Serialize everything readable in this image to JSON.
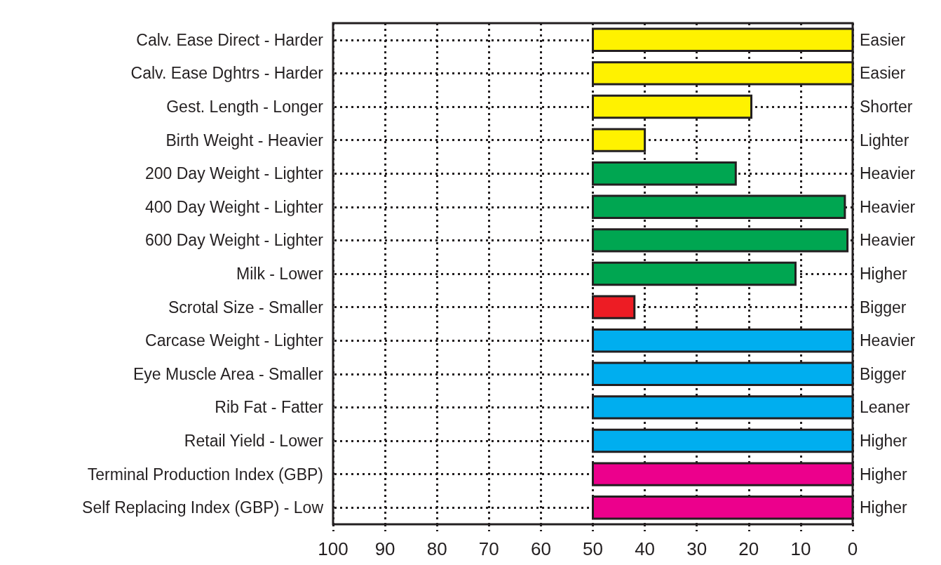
{
  "chart_data": {
    "type": "bar",
    "orientation": "horizontal",
    "categories": [
      "Calv. Ease Direct - Harder",
      "Calv. Ease Dghtrs - Harder",
      "Gest. Length - Longer",
      "Birth Weight - Heavier",
      "200 Day Weight - Lighter",
      "400 Day Weight - Lighter",
      "600 Day Weight - Lighter",
      "Milk - Lower",
      "Scrotal Size - Smaller",
      "Carcase Weight - Lighter",
      "Eye Muscle Area - Smaller",
      "Rib Fat - Fatter",
      "Retail Yield - Lower",
      "Terminal Production Index (GBP)",
      "Self Replacing Index (GBP) - Low"
    ],
    "y2_categories": [
      "Easier",
      "Easier",
      "Shorter",
      "Lighter",
      "Heavier",
      "Heavier",
      "Heavier",
      "Higher",
      "Bigger",
      "Heavier",
      "Bigger",
      "Leaner",
      "Higher",
      "Higher",
      "Higher"
    ],
    "base": [
      0,
      0,
      19.5,
      40,
      22.5,
      1.5,
      1,
      11,
      42,
      0,
      0,
      0,
      0,
      0,
      0
    ],
    "values": [
      50,
      50,
      30.5,
      10,
      27.5,
      48.5,
      49,
      39,
      8,
      50,
      50,
      50,
      50,
      50,
      50
    ],
    "colors": [
      "#fff200",
      "#fff200",
      "#fff200",
      "#fff200",
      "#00a651",
      "#00a651",
      "#00a651",
      "#00a651",
      "#ed1c24",
      "#00aeef",
      "#00aeef",
      "#00aeef",
      "#00aeef",
      "#ec008c",
      "#ec008c"
    ],
    "xlim": [
      100,
      0
    ],
    "xticks": [
      100,
      90,
      80,
      70,
      60,
      50,
      40,
      30,
      20,
      10,
      0
    ],
    "grid": true
  }
}
